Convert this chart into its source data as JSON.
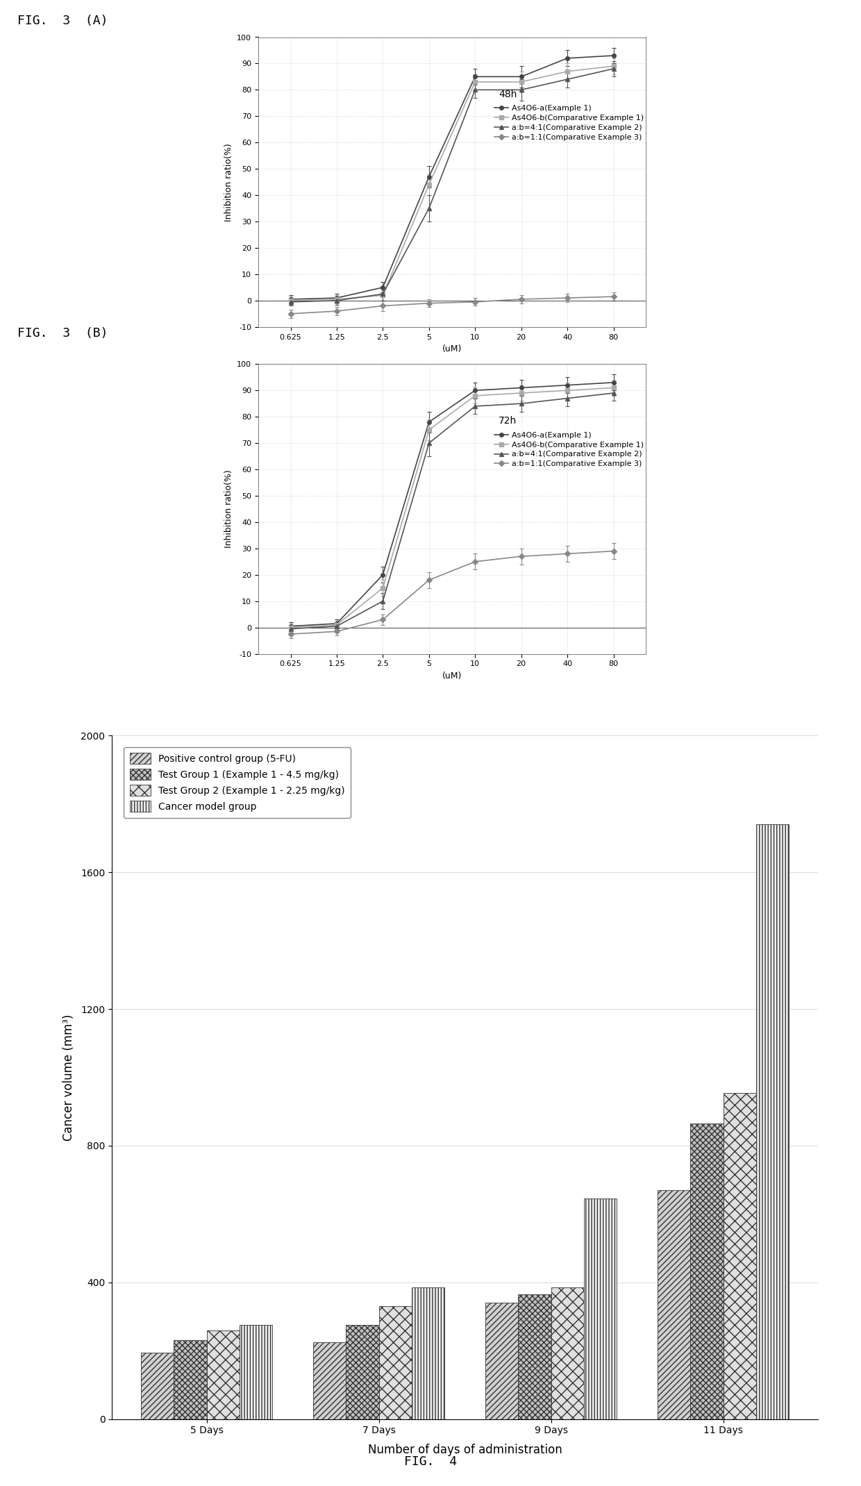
{
  "fig3A": {
    "time_label": "48h",
    "xlabel": "(uM)",
    "ylabel": "Inhibition ratio(%)",
    "ylim": [
      -10,
      100
    ],
    "yticks": [
      -10,
      0,
      10,
      20,
      30,
      40,
      50,
      60,
      70,
      80,
      90,
      100
    ],
    "xtick_labels": [
      "0.625",
      "1.25",
      "2.5",
      "5",
      "10",
      "20",
      "40",
      "80"
    ],
    "x_positions": [
      1,
      2,
      3,
      4,
      5,
      6,
      7,
      8
    ],
    "series": [
      {
        "label": "As4O6-a(Example 1)",
        "color": "#444444",
        "marker": "o",
        "values": [
          0.5,
          1.0,
          5.0,
          47.0,
          85.0,
          85.0,
          92.0,
          93.0
        ],
        "errors": [
          1.5,
          1.5,
          2.0,
          4.0,
          3.0,
          4.0,
          3.0,
          3.0
        ]
      },
      {
        "label": "As4O6-b(Comparative Example 1)",
        "color": "#aaaaaa",
        "marker": "s",
        "values": [
          0.0,
          0.5,
          2.0,
          44.0,
          83.0,
          83.0,
          87.0,
          89.0
        ],
        "errors": [
          1.5,
          1.5,
          2.0,
          4.0,
          3.0,
          4.0,
          3.0,
          3.0
        ]
      },
      {
        "label": "a:b=4:1(Comparative Example 2)",
        "color": "#555555",
        "marker": "^",
        "values": [
          -0.5,
          0.0,
          2.5,
          35.0,
          80.0,
          80.0,
          84.0,
          88.0
        ],
        "errors": [
          1.5,
          1.5,
          2.5,
          5.0,
          3.0,
          4.0,
          3.0,
          3.0
        ]
      },
      {
        "label": "a:b=1:1(Comparative Example 3)",
        "color": "#888888",
        "marker": "D",
        "values": [
          -5.0,
          -4.0,
          -2.0,
          -1.0,
          -0.5,
          0.5,
          1.0,
          1.5
        ],
        "errors": [
          1.5,
          1.5,
          2.0,
          1.5,
          1.5,
          1.5,
          1.5,
          1.5
        ]
      }
    ]
  },
  "fig3B": {
    "time_label": "72h",
    "xlabel": "(uM)",
    "ylabel": "Inhibition ratio(%)",
    "ylim": [
      -10,
      100
    ],
    "yticks": [
      -10,
      0,
      10,
      20,
      30,
      40,
      50,
      60,
      70,
      80,
      90,
      100
    ],
    "xtick_labels": [
      "0.625",
      "1.25",
      "2.5",
      "5",
      "10",
      "20",
      "40",
      "80"
    ],
    "x_positions": [
      1,
      2,
      3,
      4,
      5,
      6,
      7,
      8
    ],
    "series": [
      {
        "label": "As4O6-a(Example 1)",
        "color": "#444444",
        "marker": "o",
        "values": [
          0.5,
          1.5,
          20.0,
          78.0,
          90.0,
          91.0,
          92.0,
          93.0
        ],
        "errors": [
          1.5,
          1.5,
          3.0,
          4.0,
          3.0,
          3.0,
          3.0,
          3.0
        ]
      },
      {
        "label": "As4O6-b(Comparative Example 1)",
        "color": "#aaaaaa",
        "marker": "s",
        "values": [
          0.0,
          1.0,
          15.0,
          75.0,
          88.0,
          89.0,
          90.0,
          91.0
        ],
        "errors": [
          1.5,
          1.5,
          3.0,
          4.0,
          3.0,
          3.0,
          3.0,
          3.0
        ]
      },
      {
        "label": "a:b=4:1(Comparative Example 2)",
        "color": "#555555",
        "marker": "^",
        "values": [
          -0.5,
          0.5,
          10.0,
          70.0,
          84.0,
          85.0,
          87.0,
          89.0
        ],
        "errors": [
          1.5,
          1.5,
          3.0,
          5.0,
          3.0,
          3.0,
          3.0,
          3.0
        ]
      },
      {
        "label": "a:b=1:1(Comparative Example 3)",
        "color": "#888888",
        "marker": "D",
        "values": [
          -2.5,
          -1.5,
          3.0,
          18.0,
          25.0,
          27.0,
          28.0,
          29.0
        ],
        "errors": [
          1.5,
          1.5,
          2.0,
          3.0,
          3.0,
          3.0,
          3.0,
          3.0
        ]
      }
    ]
  },
  "fig4": {
    "xlabel": "Number of days of administration",
    "ylabel": "Cancer volume (mm³)",
    "ylim": [
      0,
      2000
    ],
    "yticks": [
      0,
      400,
      800,
      1200,
      1600,
      2000
    ],
    "categories": [
      "5 Days",
      "7 Days",
      "9 Days",
      "11 Days"
    ],
    "groups": [
      {
        "label": "Positive control group (5-FU)",
        "hatch": "////",
        "facecolor": "#d0d0d0",
        "edgecolor": "#333333",
        "values": [
          195,
          225,
          340,
          670
        ]
      },
      {
        "label": "Test Group 1 (Example 1 - 4.5 mg/kg)",
        "hatch": "xxxx",
        "facecolor": "#c0c0c0",
        "edgecolor": "#333333",
        "values": [
          230,
          275,
          365,
          865
        ]
      },
      {
        "label": "Test Group 2 (Example 1 - 2.25 mg/kg)",
        "hatch": "xx",
        "facecolor": "#e0e0e0",
        "edgecolor": "#333333",
        "values": [
          260,
          330,
          385,
          955
        ]
      },
      {
        "label": "Cancer model group",
        "hatch": "||||",
        "facecolor": "#f0f0f0",
        "edgecolor": "#333333",
        "values": [
          275,
          385,
          645,
          1740
        ]
      }
    ]
  },
  "fig_label_fontsize": 13,
  "axis_label_fontsize": 9,
  "tick_fontsize": 8,
  "legend_fontsize": 8,
  "time_label_fontsize": 10
}
